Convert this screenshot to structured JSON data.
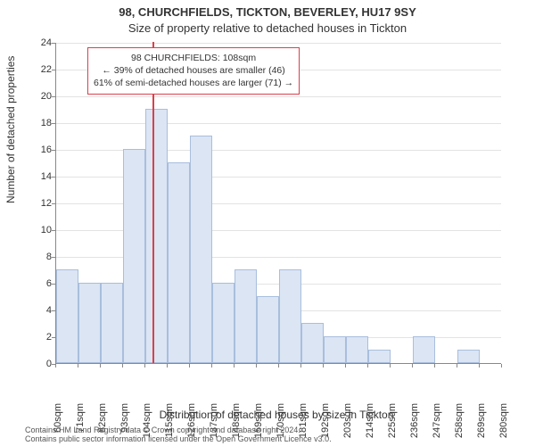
{
  "title_main": "98, CHURCHFIELDS, TICKTON, BEVERLEY, HU17 9SY",
  "title_sub": "Size of property relative to detached houses in Tickton",
  "y_axis_label": "Number of detached properties",
  "x_axis_label": "Distribution of detached houses by size in Tickton",
  "footer_line1": "Contains HM Land Registry data © Crown copyright and database right 2024.",
  "footer_line2": "Contains public sector information licensed under the Open Government Licence v3.0.",
  "chart": {
    "type": "histogram",
    "ymin": 0,
    "ymax": 24,
    "ytick_step": 2,
    "x_ticks": [
      "60sqm",
      "71sqm",
      "82sqm",
      "93sqm",
      "104sqm",
      "115sqm",
      "126sqm",
      "137sqm",
      "148sqm",
      "159sqm",
      "170sqm",
      "181sqm",
      "192sqm",
      "203sqm",
      "214sqm",
      "225sqm",
      "236sqm",
      "247sqm",
      "258sqm",
      "269sqm",
      "280sqm"
    ],
    "bar_values": [
      7,
      6,
      6,
      16,
      19,
      15,
      17,
      6,
      7,
      5,
      7,
      3,
      2,
      2,
      1,
      0,
      2,
      0,
      1,
      0
    ],
    "bar_fill": "#dbe5f4",
    "bar_border": "#a9bedd",
    "grid_color": "#e3e3e3",
    "background": "#ffffff",
    "axis_color": "#888888",
    "tick_fontsize": 11,
    "label_fontsize": 12,
    "title_fontsize": 13,
    "marker": {
      "x_value": 108,
      "x_min": 60,
      "x_max": 280,
      "color": "#d9404c"
    },
    "annotation": {
      "border_color": "#d9404c",
      "lines": [
        "98 CHURCHFIELDS: 108sqm",
        "← 39% of detached houses are smaller (46)",
        "61% of semi-detached houses are larger (71) →"
      ]
    }
  }
}
